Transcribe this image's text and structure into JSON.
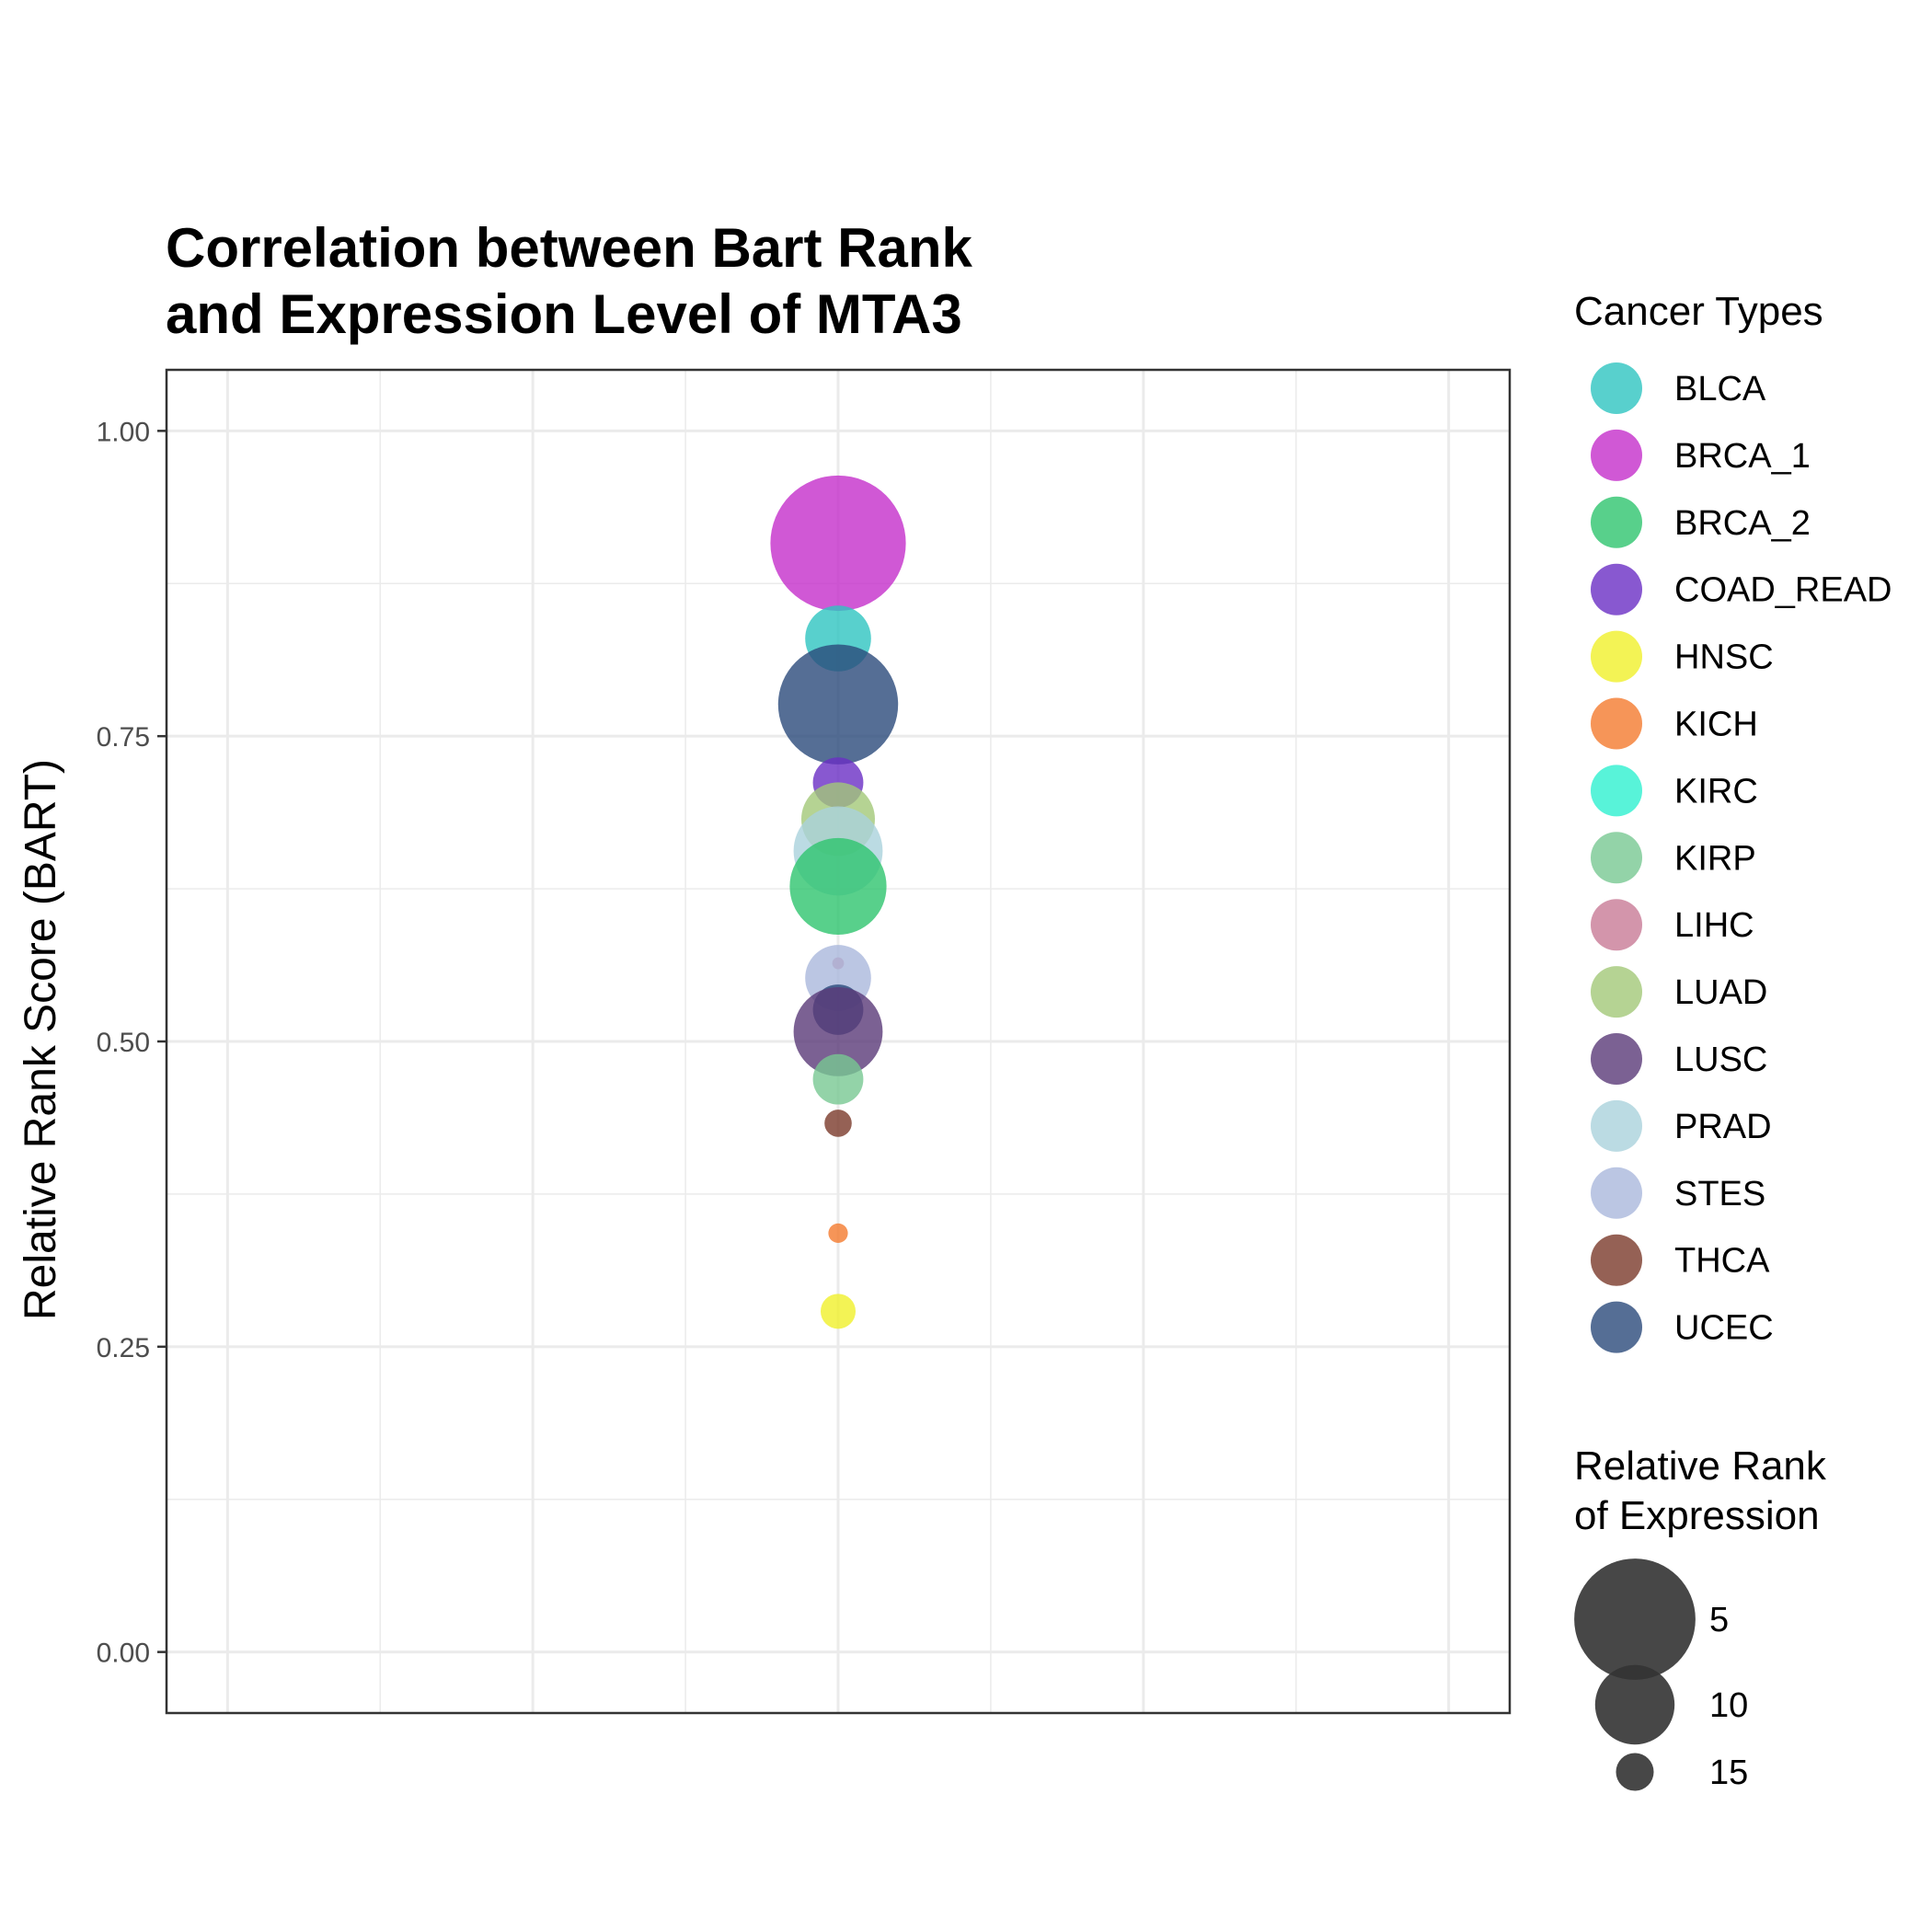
{
  "chart_data": {
    "type": "scatter",
    "title": [
      "Correlation between Bart Rank",
      "and Expression Level of MTA3"
    ],
    "ylabel": "Relative Rank Score (BART)",
    "xlabel": "",
    "ylim": [
      -0.05,
      1.05
    ],
    "y_ticks": [
      0.0,
      0.25,
      0.5,
      0.75,
      1.0
    ],
    "y_tick_labels": [
      "0.00",
      "0.25",
      "0.50",
      "0.75",
      "1.00"
    ],
    "grid": true,
    "legend_position": "right",
    "color_legend": {
      "title": "Cancer Types",
      "entries": [
        {
          "name": "BLCA",
          "color": "#2ec4c0"
        },
        {
          "name": "BRCA_1",
          "color": "#c42ecb"
        },
        {
          "name": "BRCA_2",
          "color": "#2ec46e"
        },
        {
          "name": "COAD_READ",
          "color": "#6a2ec4"
        },
        {
          "name": "HNSC",
          "color": "#f0f02a"
        },
        {
          "name": "KICH",
          "color": "#f47b2e"
        },
        {
          "name": "KIRC",
          "color": "#2ef0d0"
        },
        {
          "name": "KIRP",
          "color": "#78c892"
        },
        {
          "name": "LIHC",
          "color": "#c87a96"
        },
        {
          "name": "LUAD",
          "color": "#a2c878"
        },
        {
          "name": "LUSC",
          "color": "#5a3a78"
        },
        {
          "name": "PRAD",
          "color": "#aad2dc"
        },
        {
          "name": "STES",
          "color": "#aab8dc"
        },
        {
          "name": "THCA",
          "color": "#7a3a2a"
        },
        {
          "name": "UCEC",
          "color": "#2a4a7a"
        }
      ]
    },
    "size_legend": {
      "title": [
        "Relative Rank",
        "of Expression"
      ],
      "color": "#333333",
      "entries": [
        {
          "label": "5",
          "value": 5
        },
        {
          "label": "10",
          "value": 10
        },
        {
          "label": "15",
          "value": 15
        }
      ]
    },
    "series": [
      {
        "name": "BRCA_1",
        "x": 1,
        "y": 0.908,
        "size": 2
      },
      {
        "name": "BLCA",
        "x": 1,
        "y": 0.83,
        "size": 11
      },
      {
        "name": "UCEC",
        "x": 1,
        "y": 0.776,
        "size": 4
      },
      {
        "name": "COAD_READ",
        "x": 1,
        "y": 0.712,
        "size": 13
      },
      {
        "name": "LUAD",
        "x": 1,
        "y": 0.682,
        "size": 10
      },
      {
        "name": "PRAD",
        "x": 1,
        "y": 0.656,
        "size": 8
      },
      {
        "name": "BRCA_2",
        "x": 1,
        "y": 0.627,
        "size": 7
      },
      {
        "name": "LIHC",
        "x": 1,
        "y": 0.564,
        "size": 18
      },
      {
        "name": "STES",
        "x": 1,
        "y": 0.552,
        "size": 11
      },
      {
        "name": "UCEC",
        "x": 1,
        "y": 0.526,
        "size": 13
      },
      {
        "name": "LUSC",
        "x": 1,
        "y": 0.508,
        "size": 8
      },
      {
        "name": "KIRP",
        "x": 1,
        "y": 0.469,
        "size": 13
      },
      {
        "name": "THCA",
        "x": 1,
        "y": 0.433,
        "size": 16
      },
      {
        "name": "KICH",
        "x": 1,
        "y": 0.343,
        "size": 17
      },
      {
        "name": "HNSC",
        "x": 1,
        "y": 0.279,
        "size": 15
      }
    ]
  }
}
